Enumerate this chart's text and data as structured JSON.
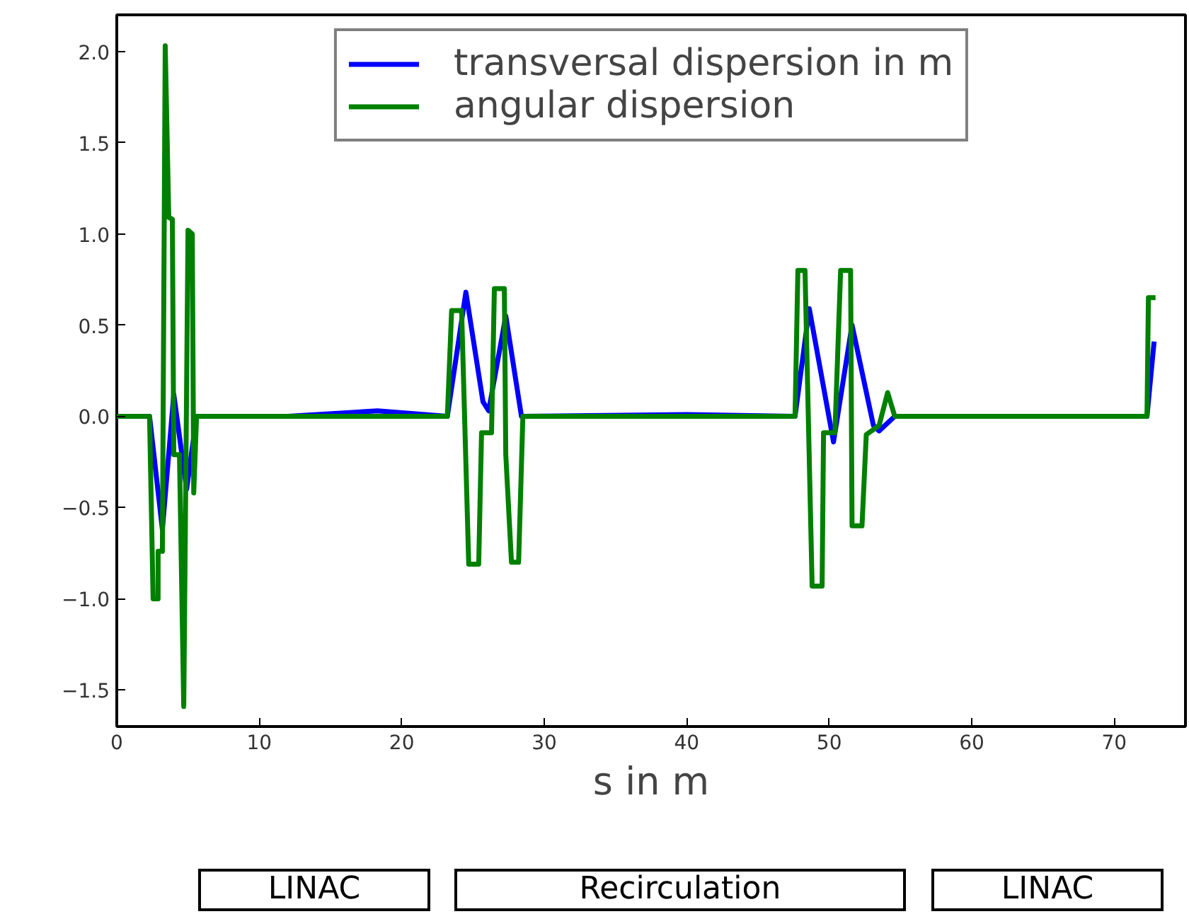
{
  "chart_data": {
    "type": "line",
    "xlabel": "s in m",
    "xlim": [
      0,
      75
    ],
    "ylim": [
      -1.7,
      2.2
    ],
    "xticks": [
      0,
      10,
      20,
      30,
      40,
      50,
      60,
      70
    ],
    "yticks": [
      {
        "value": -1.5,
        "label": "−1.5"
      },
      {
        "value": -1.0,
        "label": "−1.0"
      },
      {
        "value": -0.5,
        "label": "−0.5"
      },
      {
        "value": 0.0,
        "label": "0.0"
      },
      {
        "value": 0.5,
        "label": "0.5"
      },
      {
        "value": 1.0,
        "label": "1.0"
      },
      {
        "value": 1.5,
        "label": "1.5"
      },
      {
        "value": 2.0,
        "label": "2.0"
      }
    ],
    "grid": false,
    "legend": "top",
    "marker": "none",
    "line_style": "solid",
    "annotations": [
      "LINAC",
      "Recirculation",
      "LINAC"
    ],
    "series": [
      {
        "name": "transversal dispersion in m",
        "color": "#0000ff",
        "x": [
          0,
          2.3,
          3.2,
          4.0,
          4.9,
          5.6,
          12,
          18.3,
          23.2,
          24.5,
          25.7,
          26.1,
          27.3,
          28.4,
          40,
          47.6,
          48.6,
          50.3,
          51.6,
          53.1,
          53.5,
          54.6,
          72.3,
          72.8
        ],
        "values": [
          0,
          0,
          -0.62,
          0.12,
          -0.4,
          0,
          0,
          0.03,
          0,
          0.68,
          0.08,
          0.03,
          0.55,
          0,
          0.01,
          0,
          0.59,
          -0.14,
          0.5,
          -0.05,
          -0.08,
          0,
          0,
          0.41
        ]
      },
      {
        "name": "angular dispersion",
        "color": "#008000",
        "x": [
          0,
          2.3,
          2.55,
          2.9,
          2.9,
          3.2,
          3.4,
          3.65,
          3.9,
          4.0,
          4.4,
          4.7,
          5.0,
          5.3,
          5.4,
          5.6,
          23.2,
          23.5,
          24.2,
          24.7,
          25.4,
          25.6,
          26.3,
          26.5,
          27.2,
          27.3,
          27.7,
          28.2,
          28.5,
          47.6,
          47.8,
          48.3,
          48.8,
          49.5,
          49.6,
          50.4,
          50.8,
          51.5,
          51.6,
          52.3,
          52.6,
          53.5,
          54.1,
          54.6,
          72.3,
          72.4,
          72.9
        ],
        "values": [
          0,
          0,
          -1.0,
          -1.0,
          -0.74,
          -0.74,
          2.03,
          1.09,
          1.08,
          -0.21,
          -0.21,
          -1.59,
          1.02,
          1.0,
          -0.42,
          0,
          0,
          0.58,
          0.58,
          -0.81,
          -0.81,
          -0.09,
          -0.09,
          0.7,
          0.7,
          -0.21,
          -0.8,
          -0.8,
          0,
          0,
          0.8,
          0.8,
          -0.93,
          -0.93,
          -0.09,
          -0.09,
          0.8,
          0.8,
          -0.6,
          -0.6,
          -0.1,
          -0.05,
          0.13,
          0,
          0,
          0.65,
          0.65
        ]
      }
    ]
  }
}
